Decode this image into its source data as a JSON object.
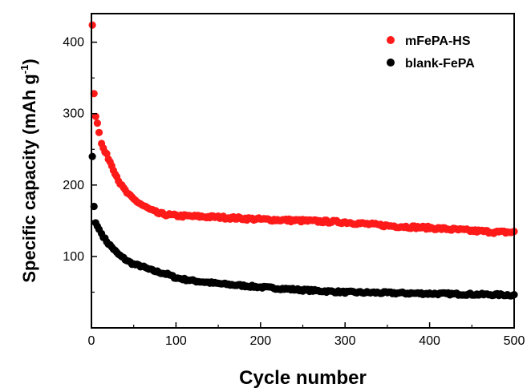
{
  "chart_data": {
    "type": "scatter",
    "title": "",
    "xlabel": "Cycle number",
    "ylabel": "Specific capacity (mAh g-1)",
    "ylabel_main": "Specific capacity (mAh g",
    "ylabel_sup": "-1",
    "ylabel_close": ")",
    "xlim": [
      0,
      500
    ],
    "ylim": [
      0,
      440
    ],
    "xticks": [
      0,
      100,
      200,
      300,
      400,
      500
    ],
    "yticks": [
      100,
      200,
      300,
      400
    ],
    "legend_position": "top-right",
    "grid": false,
    "series": [
      {
        "name": "mFePA-HS",
        "color": "#ff1a1a",
        "key_points": [
          [
            1,
            424
          ],
          [
            3,
            328
          ],
          [
            5,
            296
          ],
          [
            8,
            282
          ],
          [
            10,
            265
          ],
          [
            15,
            248
          ],
          [
            20,
            238
          ],
          [
            25,
            225
          ],
          [
            30,
            212
          ],
          [
            35,
            200
          ],
          [
            40,
            192
          ],
          [
            45,
            185
          ],
          [
            50,
            180
          ],
          [
            60,
            172
          ],
          [
            70,
            165
          ],
          [
            80,
            160
          ],
          [
            100,
            157
          ],
          [
            150,
            155
          ],
          [
            200,
            152
          ],
          [
            250,
            150
          ],
          [
            300,
            148
          ],
          [
            350,
            143
          ],
          [
            400,
            140
          ],
          [
            450,
            136
          ],
          [
            480,
            134
          ],
          [
            500,
            134
          ]
        ],
        "noise": 2
      },
      {
        "name": "blank-FePA",
        "color": "#000000",
        "key_points": [
          [
            1,
            240
          ],
          [
            3,
            170
          ],
          [
            5,
            147
          ],
          [
            8,
            140
          ],
          [
            10,
            136
          ],
          [
            15,
            126
          ],
          [
            20,
            118
          ],
          [
            25,
            112
          ],
          [
            30,
            105
          ],
          [
            35,
            100
          ],
          [
            40,
            96
          ],
          [
            45,
            92
          ],
          [
            50,
            89
          ],
          [
            60,
            86
          ],
          [
            70,
            81
          ],
          [
            80,
            78
          ],
          [
            90,
            75
          ],
          [
            100,
            70
          ],
          [
            120,
            66
          ],
          [
            150,
            62
          ],
          [
            200,
            57
          ],
          [
            250,
            53
          ],
          [
            300,
            50
          ],
          [
            350,
            49
          ],
          [
            400,
            48
          ],
          [
            450,
            47
          ],
          [
            500,
            46
          ]
        ],
        "noise": 1.5
      }
    ]
  }
}
